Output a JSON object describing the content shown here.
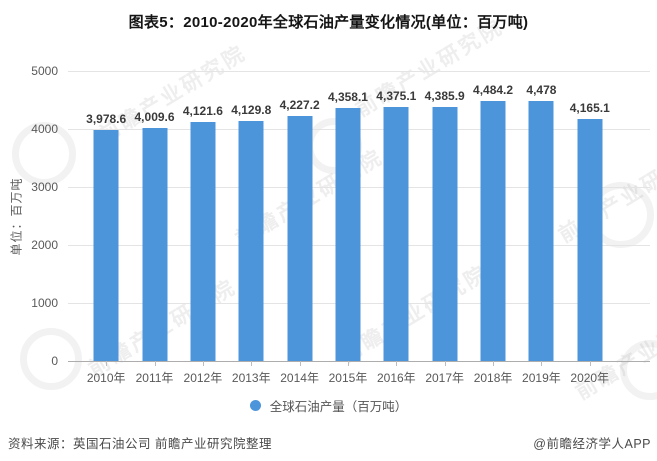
{
  "title": "图表5：2010-2020年全球石油产量变化情况(单位：百万吨)",
  "chart_data": {
    "type": "bar",
    "title": "图表5：2010-2020年全球石油产量变化情况(单位：百万吨)",
    "categories": [
      "2010年",
      "2011年",
      "2012年",
      "2013年",
      "2014年",
      "2015年",
      "2016年",
      "2017年",
      "2018年",
      "2019年",
      "2020年"
    ],
    "values": [
      3978.6,
      4009.6,
      4121.6,
      4129.8,
      4227.2,
      4358.1,
      4375.1,
      4385.9,
      4484.2,
      4478,
      4165.1
    ],
    "value_labels": [
      "3,978.6",
      "4,009.6",
      "4,121.6",
      "4,129.8",
      "4,227.2",
      "4,358.1",
      "4,375.1",
      "4,385.9",
      "4,484.2",
      "4,478",
      "4,165.1"
    ],
    "series_name": "全球石油产量（百万吨）",
    "xlabel": "",
    "ylabel": "单位：百万吨",
    "ylim": [
      0,
      5000
    ],
    "ytick_interval": 1000,
    "yticks": [
      "5000",
      "4000",
      "3000",
      "2000",
      "1000",
      "0"
    ],
    "grid": true,
    "legend_position": "bottom",
    "bar_color": "#4C95DB"
  },
  "y_axis": {
    "unit_label": "单位：百万吨"
  },
  "legend": {
    "label": "全球石油产量（百万吨）"
  },
  "footer": {
    "source": "资料来源：英国石油公司 前瞻产业研究院整理",
    "credit": "@前瞻经济学人APP"
  },
  "watermark": {
    "text": "前瞻产业研究院"
  },
  "colors": {
    "bar": "#4C95DB",
    "gridline": "#e4e4e4",
    "axis_line": "#adadad",
    "tick_label": "#595959",
    "data_label": "#3a3a3a"
  }
}
